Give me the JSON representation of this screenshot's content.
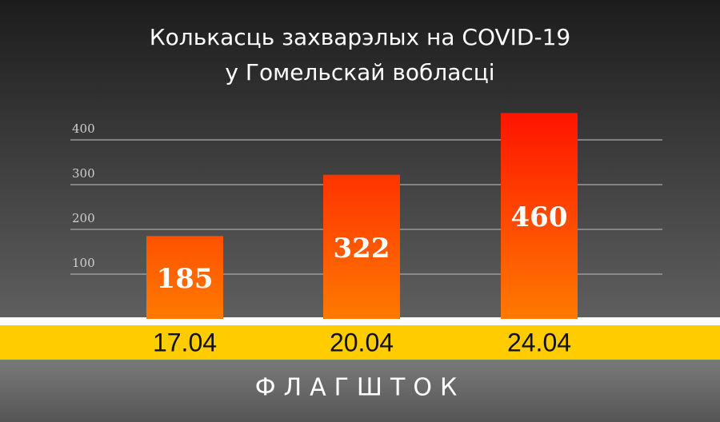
{
  "chart_data": {
    "type": "bar",
    "title": [
      "Колькасць захварэлых на COVID-19",
      "у Гомельскай вобласці"
    ],
    "categories": [
      "17.04",
      "20.04",
      "24.04"
    ],
    "values": [
      185,
      322,
      460
    ],
    "colors": [
      "#ff7a00",
      "#ff1400"
    ],
    "ylim": [
      0,
      500
    ],
    "yticks": [
      100,
      200,
      300,
      400
    ],
    "grid": true,
    "brand": "ФЛАГШТОК"
  }
}
